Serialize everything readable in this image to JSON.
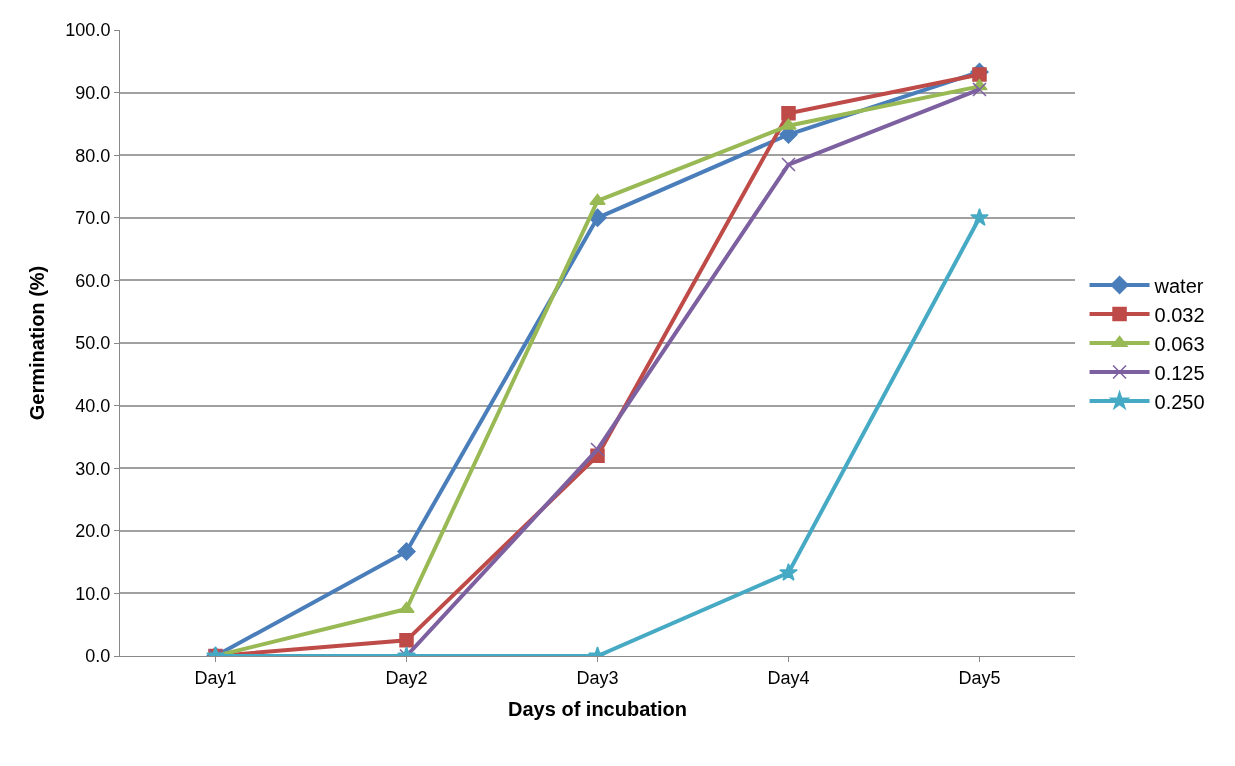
{
  "chart_data": {
    "type": "line",
    "xlabel": "Days of incubation",
    "ylabel": "Germination (%)",
    "categories": [
      "Day1",
      "Day2",
      "Day3",
      "Day4",
      "Day5"
    ],
    "series": [
      {
        "name": "water",
        "color": "#4a7ebb",
        "marker": "diamond",
        "values": [
          0,
          16.7,
          70.0,
          83.3,
          93.3
        ]
      },
      {
        "name": "0.032",
        "color": "#be4b48",
        "marker": "square",
        "values": [
          0,
          2.5,
          32.0,
          86.7,
          92.9
        ]
      },
      {
        "name": "0.063",
        "color": "#98b954",
        "marker": "triangle",
        "values": [
          0,
          7.5,
          72.7,
          84.7,
          91.0
        ]
      },
      {
        "name": "0.125",
        "color": "#7d60a0",
        "marker": "cross",
        "values": [
          0,
          0,
          33.0,
          78.5,
          90.5
        ]
      },
      {
        "name": "0.250",
        "color": "#46aac5",
        "marker": "star",
        "values": [
          0,
          0,
          0,
          13.3,
          70.0
        ]
      }
    ],
    "ylim": [
      0,
      100
    ],
    "yticks": [
      {
        "value": 0,
        "label": "0.0"
      },
      {
        "value": 10,
        "label": "10.0"
      },
      {
        "value": 20,
        "label": "20.0"
      },
      {
        "value": 30,
        "label": "30.0"
      },
      {
        "value": 40,
        "label": "40.0"
      },
      {
        "value": 50,
        "label": "50.0"
      },
      {
        "value": 60,
        "label": "60.0"
      },
      {
        "value": 70,
        "label": "70.0"
      },
      {
        "value": 80,
        "label": "80.0"
      },
      {
        "value": 90,
        "label": "90.0"
      },
      {
        "value": 100,
        "label": "100.0"
      }
    ],
    "grid": "y",
    "legend": "right",
    "line_style": "solid"
  }
}
